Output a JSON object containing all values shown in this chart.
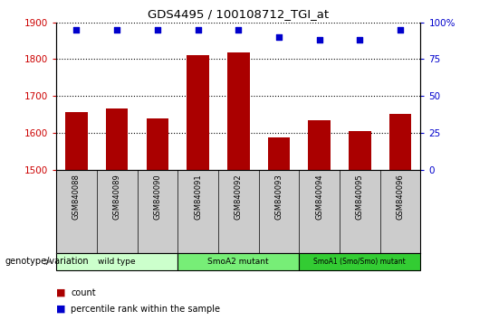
{
  "title": "GDS4495 / 100108712_TGI_at",
  "samples": [
    "GSM840088",
    "GSM840089",
    "GSM840090",
    "GSM840091",
    "GSM840092",
    "GSM840093",
    "GSM840094",
    "GSM840095",
    "GSM840096"
  ],
  "counts": [
    1657,
    1667,
    1638,
    1810,
    1819,
    1587,
    1633,
    1605,
    1652
  ],
  "percentile_ranks": [
    95,
    95,
    95,
    95,
    95,
    90,
    88,
    88,
    95
  ],
  "ylim_left": [
    1500,
    1900
  ],
  "ylim_right": [
    0,
    100
  ],
  "yticks_left": [
    1500,
    1600,
    1700,
    1800,
    1900
  ],
  "yticks_right": [
    0,
    25,
    50,
    75,
    100
  ],
  "bar_color": "#aa0000",
  "dot_color": "#0000cc",
  "groups": [
    {
      "label": "wild type",
      "start": 0,
      "end": 3,
      "color": "#ccffcc"
    },
    {
      "label": "SmoA2 mutant",
      "start": 3,
      "end": 6,
      "color": "#77ee77"
    },
    {
      "label": "SmoA1 (Smo/Smo) mutant",
      "start": 6,
      "end": 9,
      "color": "#33cc33"
    }
  ],
  "tick_label_color_left": "#cc0000",
  "tick_label_color_right": "#0000cc",
  "sample_bg_color": "#cccccc",
  "xlabel_genotype": "genotype/variation"
}
